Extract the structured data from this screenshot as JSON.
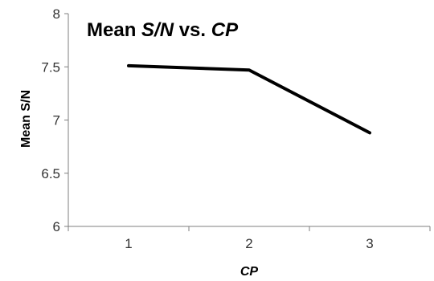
{
  "chart_data": {
    "type": "line",
    "title": "Mean S/N vs. CP",
    "title_parts": [
      {
        "text": "Mean ",
        "italic": false
      },
      {
        "text": "S/N",
        "italic": true
      },
      {
        "text": " vs. ",
        "italic": false
      },
      {
        "text": "CP",
        "italic": true
      }
    ],
    "xlabel": "CP",
    "ylabel": "Mean S/N",
    "categories": [
      "1",
      "2",
      "3"
    ],
    "series": [
      {
        "values": [
          7.51,
          7.47,
          6.88
        ]
      }
    ],
    "ylim": [
      6,
      8
    ],
    "yticks": [
      "6",
      "6.5",
      "7",
      "7.5",
      "8"
    ],
    "grid": false,
    "line_color": "#000000",
    "axis_color": "#7f7f7f"
  }
}
